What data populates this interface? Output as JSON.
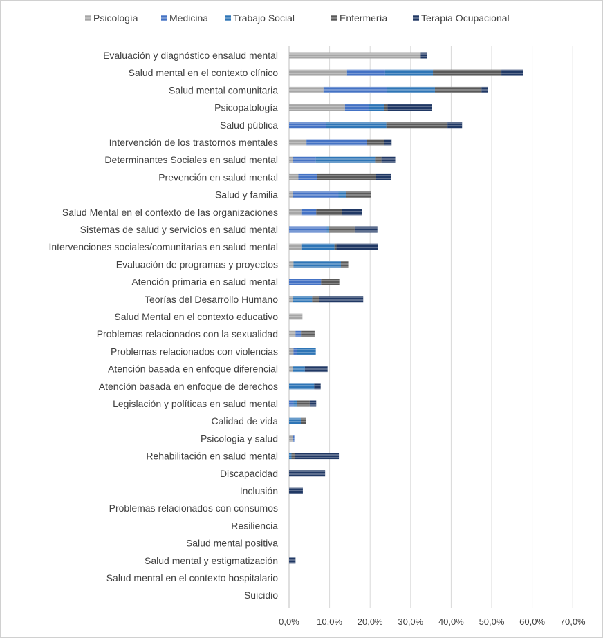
{
  "chart_data": {
    "type": "bar",
    "orientation": "horizontal",
    "stacked": true,
    "legend_position": "top",
    "grid": true,
    "xlim": [
      0,
      70
    ],
    "x_ticks": [
      "0,0%",
      "10,0%",
      "20,0%",
      "30,0%",
      "40,0%",
      "50,0%",
      "60,0%",
      "70,0%"
    ],
    "categories": [
      "Evaluación y diagnóstico ensalud mental",
      "Salud mental en el contexto clínico",
      "Salud mental comunitaria",
      "Psicopatología",
      "Salud pública",
      "Intervención de los trastornos mentales",
      "Determinantes Sociales en salud mental",
      "Prevención en salud mental",
      "Salud y familia",
      "Salud Mental en el contexto de las organizaciones",
      "Sistemas de salud y servicios en salud mental",
      "Intervenciones sociales/comunitarias en salud mental",
      "Evaluación de programas y proyectos",
      "Atención primaria en salud mental",
      "Teorías del Desarrollo Humano",
      "Salud Mental en el contexto educativo",
      "Problemas relacionados con la sexualidad",
      "Problemas relacionados con violencias",
      "Atención basada en enfoque diferencial",
      "Atención basada en enfoque de derechos",
      "Legislación y políticas en salud mental",
      "Calidad de vida",
      "Psicologia y salud",
      "Rehabilitación en salud mental",
      "Discapacidad",
      "Inclusión",
      "Problemas relacionados con consumos",
      "Resiliencia",
      "Salud mental positiva",
      "Salud mental y estigmatización",
      "Salud mental en el contexto hospitalario",
      "Suicidio"
    ],
    "series": [
      {
        "name": "Psicología",
        "color": "#a6a6a6",
        "values": [
          32.5,
          14.3,
          8.5,
          13.8,
          0,
          4.3,
          0.9,
          2.3,
          0.9,
          3.2,
          0,
          3.2,
          1.1,
          0,
          0.9,
          3.3,
          1.6,
          1.1,
          0.9,
          0,
          0,
          0,
          0.9,
          0,
          0,
          0,
          0,
          0,
          0,
          0,
          0,
          0
        ]
      },
      {
        "name": "Medicina",
        "color": "#4472c4",
        "values": [
          0,
          9.4,
          15.7,
          5.9,
          9.2,
          14.9,
          5.7,
          4.6,
          11.3,
          3.5,
          9.3,
          0,
          0,
          7.9,
          0,
          0,
          1.5,
          0.9,
          0,
          0,
          1.1,
          0,
          0.4,
          0,
          0,
          0,
          0,
          0,
          0,
          0,
          0,
          0
        ]
      },
      {
        "name": "Trabajo Social",
        "color": "#2e75b6",
        "values": [
          0,
          11.8,
          11.8,
          3.7,
          14.8,
          0,
          14.8,
          0,
          1.8,
          0,
          0.6,
          8.0,
          11.7,
          0,
          4.8,
          0,
          0,
          4.6,
          3.0,
          6.2,
          0.8,
          3.0,
          0,
          0.6,
          0,
          0,
          0,
          0,
          0,
          0,
          0,
          0
        ]
      },
      {
        "name": "Enfermería",
        "color": "#595959",
        "values": [
          0,
          16.9,
          11.5,
          0.9,
          15.1,
          4.2,
          1.4,
          14.6,
          6.3,
          6.3,
          6.3,
          0.5,
          1.8,
          4.5,
          1.8,
          0,
          3.2,
          0,
          0,
          0,
          3.2,
          1.1,
          0,
          0.8,
          0,
          0,
          0,
          0,
          0,
          0,
          0,
          0
        ]
      },
      {
        "name": "Terapia Ocupacional",
        "color": "#203864",
        "values": [
          1.6,
          5.4,
          1.6,
          11.0,
          3.6,
          1.9,
          3.4,
          3.6,
          0,
          5.0,
          5.6,
          10.2,
          0,
          0,
          10.8,
          0,
          0,
          0,
          5.6,
          1.6,
          1.6,
          0,
          0,
          10.9,
          8.9,
          3.4,
          0,
          0,
          0,
          1.6,
          0,
          0
        ]
      }
    ]
  }
}
